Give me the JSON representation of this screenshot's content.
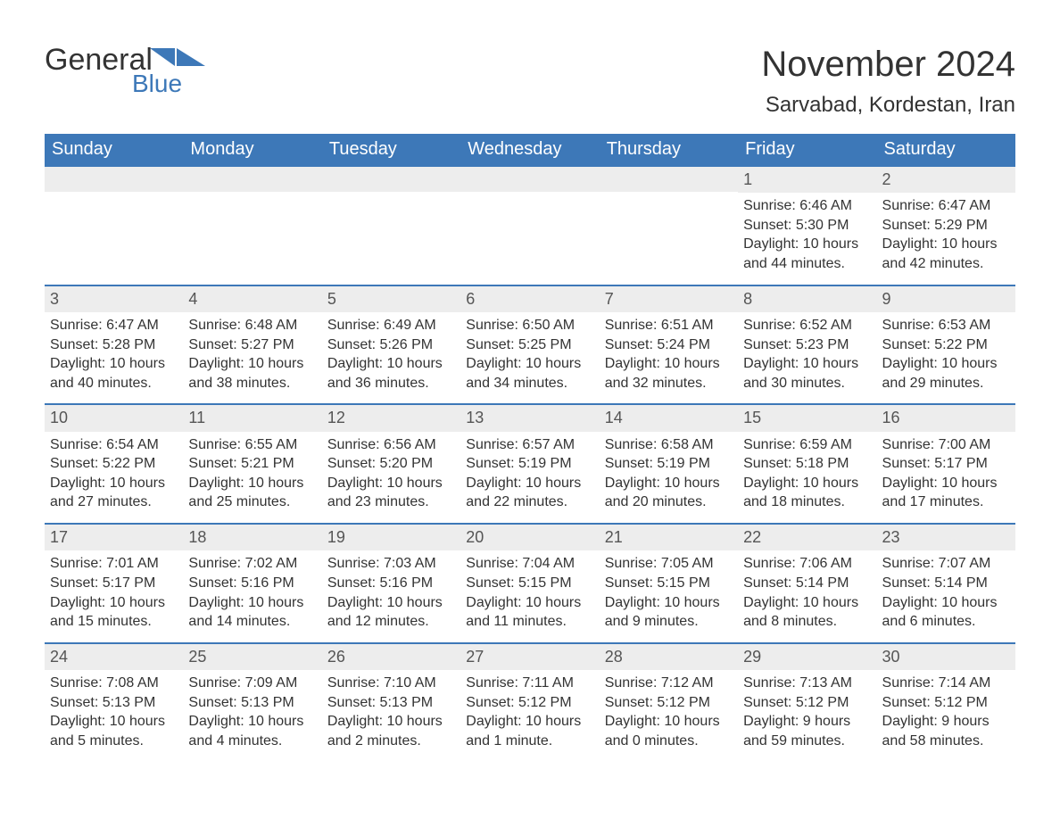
{
  "brand": {
    "name_general": "General",
    "name_blue": "Blue"
  },
  "title": {
    "month": "November 2024",
    "location": "Sarvabad, Kordestan, Iran"
  },
  "colors": {
    "header_bg": "#3d78b8",
    "header_text": "#ffffff",
    "date_band_bg": "#ededed",
    "date_text": "#555555",
    "body_text": "#333333",
    "accent": "#3d78b8",
    "page_bg": "#ffffff"
  },
  "day_names": [
    "Sunday",
    "Monday",
    "Tuesday",
    "Wednesday",
    "Thursday",
    "Friday",
    "Saturday"
  ],
  "weeks": [
    [
      null,
      null,
      null,
      null,
      null,
      {
        "date": "1",
        "sunrise": "Sunrise: 6:46 AM",
        "sunset": "Sunset: 5:30 PM",
        "daylight": "Daylight: 10 hours and 44 minutes."
      },
      {
        "date": "2",
        "sunrise": "Sunrise: 6:47 AM",
        "sunset": "Sunset: 5:29 PM",
        "daylight": "Daylight: 10 hours and 42 minutes."
      }
    ],
    [
      {
        "date": "3",
        "sunrise": "Sunrise: 6:47 AM",
        "sunset": "Sunset: 5:28 PM",
        "daylight": "Daylight: 10 hours and 40 minutes."
      },
      {
        "date": "4",
        "sunrise": "Sunrise: 6:48 AM",
        "sunset": "Sunset: 5:27 PM",
        "daylight": "Daylight: 10 hours and 38 minutes."
      },
      {
        "date": "5",
        "sunrise": "Sunrise: 6:49 AM",
        "sunset": "Sunset: 5:26 PM",
        "daylight": "Daylight: 10 hours and 36 minutes."
      },
      {
        "date": "6",
        "sunrise": "Sunrise: 6:50 AM",
        "sunset": "Sunset: 5:25 PM",
        "daylight": "Daylight: 10 hours and 34 minutes."
      },
      {
        "date": "7",
        "sunrise": "Sunrise: 6:51 AM",
        "sunset": "Sunset: 5:24 PM",
        "daylight": "Daylight: 10 hours and 32 minutes."
      },
      {
        "date": "8",
        "sunrise": "Sunrise: 6:52 AM",
        "sunset": "Sunset: 5:23 PM",
        "daylight": "Daylight: 10 hours and 30 minutes."
      },
      {
        "date": "9",
        "sunrise": "Sunrise: 6:53 AM",
        "sunset": "Sunset: 5:22 PM",
        "daylight": "Daylight: 10 hours and 29 minutes."
      }
    ],
    [
      {
        "date": "10",
        "sunrise": "Sunrise: 6:54 AM",
        "sunset": "Sunset: 5:22 PM",
        "daylight": "Daylight: 10 hours and 27 minutes."
      },
      {
        "date": "11",
        "sunrise": "Sunrise: 6:55 AM",
        "sunset": "Sunset: 5:21 PM",
        "daylight": "Daylight: 10 hours and 25 minutes."
      },
      {
        "date": "12",
        "sunrise": "Sunrise: 6:56 AM",
        "sunset": "Sunset: 5:20 PM",
        "daylight": "Daylight: 10 hours and 23 minutes."
      },
      {
        "date": "13",
        "sunrise": "Sunrise: 6:57 AM",
        "sunset": "Sunset: 5:19 PM",
        "daylight": "Daylight: 10 hours and 22 minutes."
      },
      {
        "date": "14",
        "sunrise": "Sunrise: 6:58 AM",
        "sunset": "Sunset: 5:19 PM",
        "daylight": "Daylight: 10 hours and 20 minutes."
      },
      {
        "date": "15",
        "sunrise": "Sunrise: 6:59 AM",
        "sunset": "Sunset: 5:18 PM",
        "daylight": "Daylight: 10 hours and 18 minutes."
      },
      {
        "date": "16",
        "sunrise": "Sunrise: 7:00 AM",
        "sunset": "Sunset: 5:17 PM",
        "daylight": "Daylight: 10 hours and 17 minutes."
      }
    ],
    [
      {
        "date": "17",
        "sunrise": "Sunrise: 7:01 AM",
        "sunset": "Sunset: 5:17 PM",
        "daylight": "Daylight: 10 hours and 15 minutes."
      },
      {
        "date": "18",
        "sunrise": "Sunrise: 7:02 AM",
        "sunset": "Sunset: 5:16 PM",
        "daylight": "Daylight: 10 hours and 14 minutes."
      },
      {
        "date": "19",
        "sunrise": "Sunrise: 7:03 AM",
        "sunset": "Sunset: 5:16 PM",
        "daylight": "Daylight: 10 hours and 12 minutes."
      },
      {
        "date": "20",
        "sunrise": "Sunrise: 7:04 AM",
        "sunset": "Sunset: 5:15 PM",
        "daylight": "Daylight: 10 hours and 11 minutes."
      },
      {
        "date": "21",
        "sunrise": "Sunrise: 7:05 AM",
        "sunset": "Sunset: 5:15 PM",
        "daylight": "Daylight: 10 hours and 9 minutes."
      },
      {
        "date": "22",
        "sunrise": "Sunrise: 7:06 AM",
        "sunset": "Sunset: 5:14 PM",
        "daylight": "Daylight: 10 hours and 8 minutes."
      },
      {
        "date": "23",
        "sunrise": "Sunrise: 7:07 AM",
        "sunset": "Sunset: 5:14 PM",
        "daylight": "Daylight: 10 hours and 6 minutes."
      }
    ],
    [
      {
        "date": "24",
        "sunrise": "Sunrise: 7:08 AM",
        "sunset": "Sunset: 5:13 PM",
        "daylight": "Daylight: 10 hours and 5 minutes."
      },
      {
        "date": "25",
        "sunrise": "Sunrise: 7:09 AM",
        "sunset": "Sunset: 5:13 PM",
        "daylight": "Daylight: 10 hours and 4 minutes."
      },
      {
        "date": "26",
        "sunrise": "Sunrise: 7:10 AM",
        "sunset": "Sunset: 5:13 PM",
        "daylight": "Daylight: 10 hours and 2 minutes."
      },
      {
        "date": "27",
        "sunrise": "Sunrise: 7:11 AM",
        "sunset": "Sunset: 5:12 PM",
        "daylight": "Daylight: 10 hours and 1 minute."
      },
      {
        "date": "28",
        "sunrise": "Sunrise: 7:12 AM",
        "sunset": "Sunset: 5:12 PM",
        "daylight": "Daylight: 10 hours and 0 minutes."
      },
      {
        "date": "29",
        "sunrise": "Sunrise: 7:13 AM",
        "sunset": "Sunset: 5:12 PM",
        "daylight": "Daylight: 9 hours and 59 minutes."
      },
      {
        "date": "30",
        "sunrise": "Sunrise: 7:14 AM",
        "sunset": "Sunset: 5:12 PM",
        "daylight": "Daylight: 9 hours and 58 minutes."
      }
    ]
  ]
}
